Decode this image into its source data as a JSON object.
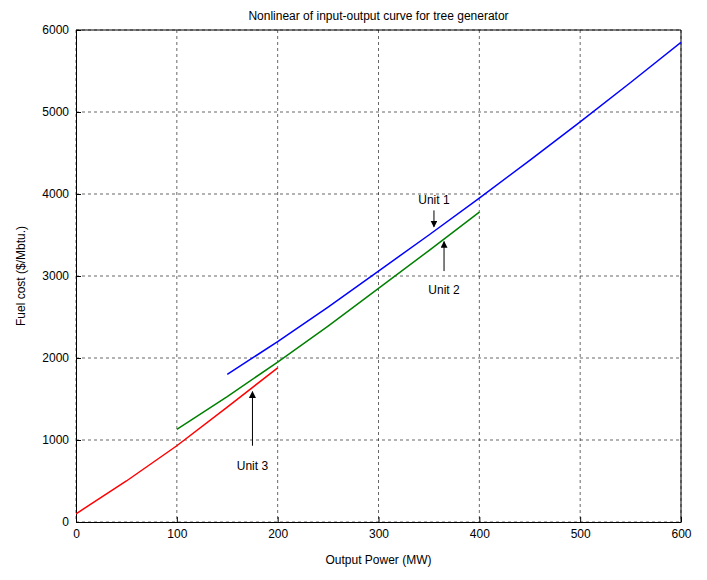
{
  "chart_data": {
    "type": "line",
    "title": "Nonlinear of input-output curve for tree generator",
    "x_label": "Output Power (MW)",
    "y_label": "Fuel cost ($/Mbtu.)",
    "x": [
      0,
      50,
      100,
      150,
      200,
      250,
      300,
      350,
      400,
      450,
      500,
      550,
      600
    ],
    "series": [
      {
        "name": "Unit 1",
        "color": "#0000ff",
        "values": [
          null,
          null,
          null,
          1800,
          2200,
          2620,
          3060,
          3500,
          3950,
          4410,
          4880,
          5360,
          5850
        ]
      },
      {
        "name": "Unit 2",
        "color": "#008000",
        "values": [
          null,
          null,
          1130,
          1530,
          1950,
          2390,
          2850,
          3310,
          3780,
          null,
          null,
          null,
          null
        ]
      },
      {
        "name": "Unit 3",
        "color": "#ff0000",
        "values": [
          100,
          500,
          930,
          1400,
          1880,
          null,
          null,
          null,
          null,
          null,
          null,
          null,
          null
        ]
      }
    ],
    "annotations": [
      "Unit 1",
      "Unit 2",
      "Unit 3"
    ],
    "xlim": [
      0,
      600
    ],
    "ylim": [
      0,
      6000
    ],
    "xticks": [
      0,
      100,
      200,
      300,
      400,
      500,
      600
    ],
    "yticks": [
      0,
      1000,
      2000,
      3000,
      4000,
      5000,
      6000
    ],
    "grid": true
  }
}
